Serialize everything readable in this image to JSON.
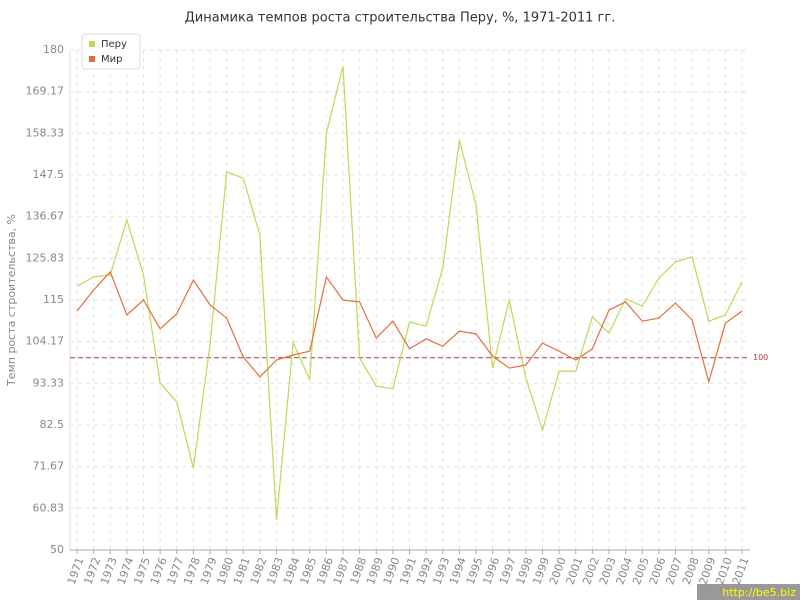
{
  "chart_data": {
    "type": "line",
    "title": "Динамика темпов роста строительства Перу, %, 1971-2011 гг.",
    "y_label": "Темп роста строительства, %",
    "categories": [
      "1971",
      "1972",
      "1973",
      "1974",
      "1975",
      "1976",
      "1977",
      "1978",
      "1979",
      "1980",
      "1981",
      "1982",
      "1983",
      "1984",
      "1985",
      "1986",
      "1987",
      "1988",
      "1989",
      "1990",
      "1991",
      "1992",
      "1993",
      "1994",
      "1995",
      "1996",
      "1997",
      "1998",
      "1999",
      "2000",
      "2001",
      "2002",
      "2003",
      "2004",
      "2005",
      "2006",
      "2007",
      "2008",
      "2009",
      "2010",
      "2011"
    ],
    "series": [
      {
        "name": "Перу",
        "color": "#bada55",
        "values": [
          118.6,
          121,
          121.5,
          135.8,
          121.5,
          93.4,
          88.5,
          71.3,
          103.3,
          148.3,
          146.7,
          131.9,
          57.8,
          104,
          94.2,
          158.4,
          175.8,
          99.9,
          92.6,
          91.9,
          109.3,
          108.2,
          123.3,
          156.6,
          139.7,
          97.3,
          115,
          94.7,
          81.2,
          96.5,
          96.5,
          110.6,
          106.4,
          115.3,
          113.4,
          120.7,
          124.9,
          126.2,
          109.5,
          111.1,
          119.7
        ]
      },
      {
        "name": "Мир",
        "color": "#e0703c",
        "values": [
          112.1,
          117.6,
          122.3,
          111.1,
          115,
          107.5,
          111.4,
          120.2,
          113.7,
          110.3,
          100.2,
          95,
          99.4,
          100.7,
          101.7,
          121,
          115,
          114.5,
          105.1,
          109.5,
          102.3,
          104.9,
          103,
          106.9,
          106.2,
          100.4,
          97.3,
          98.1,
          103.8,
          101.7,
          99.4,
          102.3,
          112.4,
          114.5,
          109.5,
          110.3,
          114.2,
          109.8,
          93.7,
          109,
          112.1
        ]
      }
    ],
    "reference_line": 100,
    "reference_color": "#b03a48",
    "ylim": [
      50,
      180
    ],
    "yticks": [
      50,
      60.83,
      71.67,
      82.5,
      93.33,
      104.17,
      115,
      125.83,
      136.67,
      147.5,
      158.33,
      169.17,
      180
    ],
    "grid": true,
    "legend": "top-left"
  },
  "watermark": "http://be5.biz"
}
